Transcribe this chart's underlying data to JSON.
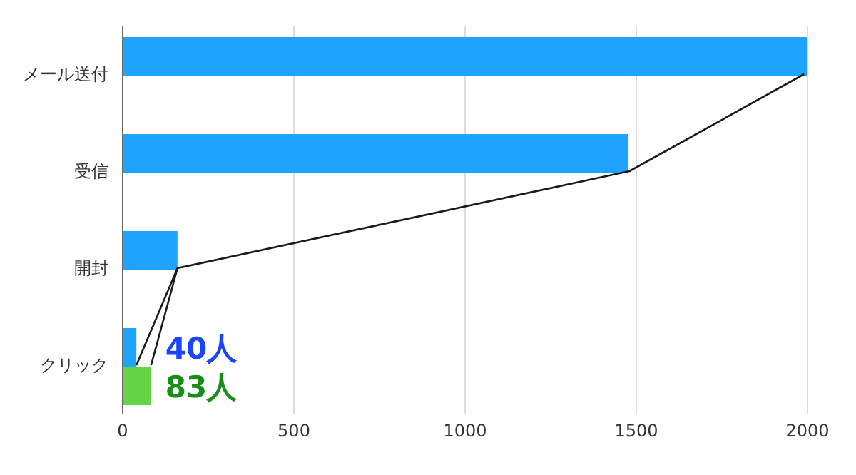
{
  "chart_data": {
    "type": "bar",
    "orientation": "horizontal",
    "categories": [
      "メール送付",
      "受信",
      "開封",
      "クリック"
    ],
    "series": [
      {
        "color": "#1ea3fe",
        "values": [
          2000,
          1475,
          160,
          40
        ],
        "value_labels": [
          null,
          null,
          null,
          "40人"
        ]
      },
      {
        "color": "#66d444",
        "values": [
          null,
          null,
          null,
          83
        ],
        "value_labels": [
          null,
          null,
          null,
          "83人"
        ]
      },
      {
        "type": "line",
        "color": "#1a1a1a",
        "values": [
          1990,
          1480,
          160,
          40
        ]
      },
      {
        "type": "line",
        "color": "#1a1a1a",
        "values": [
          null,
          null,
          160,
          83
        ]
      }
    ],
    "xlim": [
      0,
      2000
    ],
    "xticks": [
      0,
      500,
      1000,
      1500,
      2000
    ],
    "grid": "x"
  }
}
